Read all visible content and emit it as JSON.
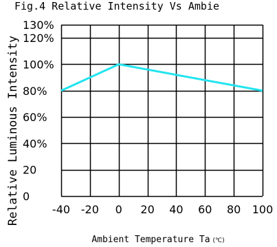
{
  "chart_data": {
    "type": "line",
    "title": "Fig.4 Relative Intensity Vs Ambie",
    "xlabel": "Ambient Temperature Ta",
    "xlabel_unit": "(℃)",
    "ylabel": "Relative Luminous Intensity",
    "xlim": [
      -40,
      100
    ],
    "ylim": [
      0,
      130
    ],
    "x_ticks": [
      -40,
      -20,
      0,
      20,
      40,
      60,
      80,
      100
    ],
    "x_tick_labels": [
      "-40",
      "-20",
      "0",
      "20",
      "40",
      "60",
      "80",
      "100"
    ],
    "y_ticks": [
      0,
      20,
      40,
      60,
      80,
      100,
      120,
      130
    ],
    "y_tick_labels": [
      "0",
      "20",
      "40%",
      "60%",
      "80%",
      "100%",
      "120%",
      "130%"
    ],
    "grid": true,
    "series": [
      {
        "x": [
          -40,
          0,
          100
        ],
        "y": [
          80,
          100,
          80
        ],
        "color": "#22e4f0"
      }
    ]
  }
}
